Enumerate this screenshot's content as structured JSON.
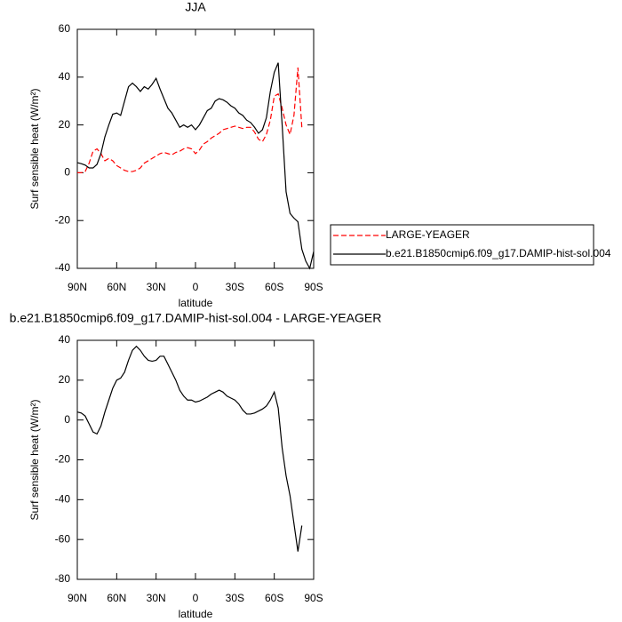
{
  "chart_data": [
    {
      "type": "line",
      "title": "JJA",
      "xlabel": "latitude",
      "ylabel": "Surf sensible heat (W/m²)",
      "x": [
        90,
        87,
        84,
        81,
        78,
        75,
        72,
        69,
        66,
        63,
        60,
        57,
        54,
        51,
        48,
        45,
        42,
        39,
        36,
        33,
        30,
        27,
        24,
        21,
        18,
        15,
        12,
        9,
        6,
        3,
        0,
        -3,
        -6,
        -9,
        -12,
        -15,
        -18,
        -21,
        -24,
        -27,
        -30,
        -33,
        -36,
        -39,
        -42,
        -45,
        -48,
        -51,
        -54,
        -57,
        -60,
        -63,
        -66,
        -69,
        -72,
        -75,
        -78,
        -81,
        -84,
        -87,
        -90
      ],
      "xlim": [
        90,
        -90
      ],
      "xticks": [
        {
          "value": 90,
          "label": "90N"
        },
        {
          "value": 60,
          "label": "60N"
        },
        {
          "value": 30,
          "label": "30N"
        },
        0,
        {
          "value": -30,
          "label": "30S"
        },
        {
          "value": -60,
          "label": "60S"
        },
        {
          "value": -90,
          "label": "90S"
        }
      ],
      "ylim": [
        -40,
        60
      ],
      "yticks": [
        60,
        40,
        20,
        0,
        -20,
        -40
      ],
      "legend": "right",
      "series": [
        {
          "name": "LARGE-YEAGER",
          "color": "#ff0000",
          "dashed": true,
          "values": [
            0,
            0,
            0.5,
            4,
            9,
            10,
            8,
            5,
            6,
            5,
            3,
            2,
            1,
            0.5,
            0.5,
            1,
            2,
            4,
            5,
            6,
            7,
            8,
            8.5,
            8,
            7.5,
            8.5,
            9,
            10,
            10.5,
            10,
            8,
            9.5,
            12,
            13,
            14.5,
            15.5,
            16.5,
            18,
            18.5,
            19,
            19.5,
            19,
            18.5,
            19,
            19,
            17,
            14,
            13,
            16,
            22,
            32,
            33,
            27,
            20,
            16,
            24,
            44,
            19,
            null,
            null,
            null
          ]
        },
        {
          "name": "b.e21.B1850cmip6.f09_g17.DAMIP-hist-sol.004",
          "color": "#000000",
          "dashed": false,
          "values": [
            4.2,
            3.8,
            3.2,
            2,
            2,
            3.5,
            8,
            15,
            20,
            24.5,
            25,
            24,
            30,
            36,
            37.5,
            36,
            34,
            36,
            35,
            37,
            39.5,
            35,
            31,
            27,
            25,
            22,
            19,
            20,
            19,
            20,
            18,
            20,
            23,
            26,
            27,
            30,
            31,
            30.5,
            29.5,
            28,
            27,
            25,
            24,
            22,
            21,
            19,
            16.5,
            18,
            23,
            34,
            42,
            46,
            20,
            -8,
            -17,
            -19,
            -20.5,
            -32,
            -37,
            -40,
            -33
          ]
        }
      ]
    },
    {
      "type": "line",
      "title": "b.e21.B1850cmip6.f09_g17.DAMIP-hist-sol.004 - LARGE-YEAGER",
      "xlabel": "latitude",
      "ylabel": "Surf sensible heat (W/m²)",
      "x": [
        90,
        87,
        84,
        81,
        78,
        75,
        72,
        69,
        66,
        63,
        60,
        57,
        54,
        51,
        48,
        45,
        42,
        39,
        36,
        33,
        30,
        27,
        24,
        21,
        18,
        15,
        12,
        9,
        6,
        3,
        0,
        -3,
        -6,
        -9,
        -12,
        -15,
        -18,
        -21,
        -24,
        -27,
        -30,
        -33,
        -36,
        -39,
        -42,
        -45,
        -48,
        -51,
        -54,
        -57,
        -60,
        -63,
        -66,
        -69,
        -72,
        -75,
        -78,
        -81,
        -84,
        -87,
        -90
      ],
      "xlim": [
        90,
        -90
      ],
      "xticks": [
        {
          "value": 90,
          "label": "90N"
        },
        {
          "value": 60,
          "label": "60N"
        },
        {
          "value": 30,
          "label": "30N"
        },
        0,
        {
          "value": -30,
          "label": "30S"
        },
        {
          "value": -60,
          "label": "60S"
        },
        {
          "value": -90,
          "label": "90S"
        }
      ],
      "ylim": [
        -80,
        40
      ],
      "yticks": [
        40,
        20,
        0,
        -20,
        -40,
        -60,
        -80
      ],
      "series": [
        {
          "color": "#000000",
          "dashed": false,
          "values": [
            4,
            3.5,
            2,
            -2,
            -6,
            -7,
            -3,
            4,
            10,
            16,
            20,
            21,
            24,
            30,
            35,
            37,
            35,
            32,
            30,
            29.5,
            30,
            32,
            32,
            28,
            24,
            20,
            15,
            12,
            10,
            10,
            9,
            9.5,
            10.5,
            11.5,
            13,
            14,
            15,
            14,
            12,
            11,
            10,
            8,
            5,
            3,
            3,
            3.5,
            4.5,
            5.5,
            7,
            10,
            14,
            6,
            -14,
            -28,
            -38,
            -52,
            -66,
            -53,
            null,
            null,
            null
          ]
        }
      ]
    }
  ]
}
